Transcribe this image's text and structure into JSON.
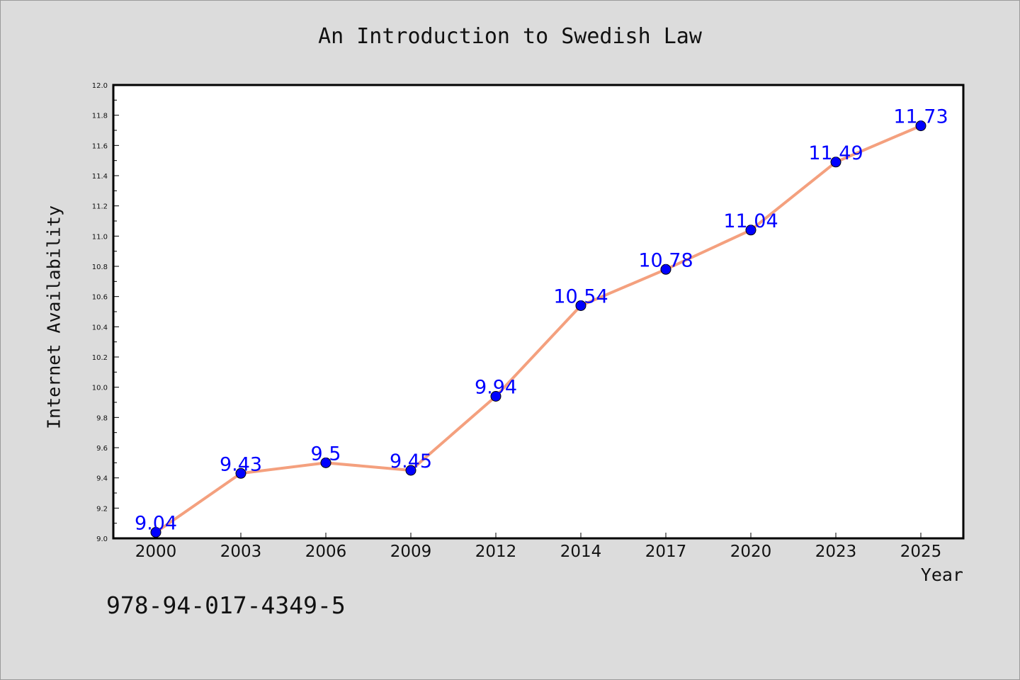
{
  "chart_data": {
    "type": "line",
    "title": "An Introduction to Swedish Law",
    "xlabel": "Year",
    "ylabel": "Internet Availability",
    "categories": [
      "2000",
      "2003",
      "2006",
      "2009",
      "2012",
      "2014",
      "2017",
      "2020",
      "2023",
      "2025"
    ],
    "values": [
      9.04,
      9.43,
      9.5,
      9.45,
      9.94,
      10.54,
      10.78,
      11.04,
      11.49,
      11.73
    ],
    "data_labels": [
      "9.04",
      "9.43",
      "9.5",
      "9.45",
      "9.94",
      "10.54",
      "10.78",
      "11.04",
      "11.49",
      "11.73"
    ],
    "ylim": [
      9.0,
      12.0
    ],
    "y_ticks": [
      "9.0",
      "9.2",
      "9.4",
      "9.6",
      "9.8",
      "10.0",
      "10.2",
      "10.4",
      "10.6",
      "10.8",
      "11.0",
      "11.2",
      "11.4",
      "11.6",
      "11.8",
      "12.0"
    ],
    "grid": false,
    "colors": {
      "line": "#f4a07e",
      "marker": "#0000ff",
      "label": "#0000ff",
      "background": "#dcdcdc",
      "plot_background": "#ffffff"
    }
  },
  "footer": {
    "isbn": "978-94-017-4349-5"
  }
}
